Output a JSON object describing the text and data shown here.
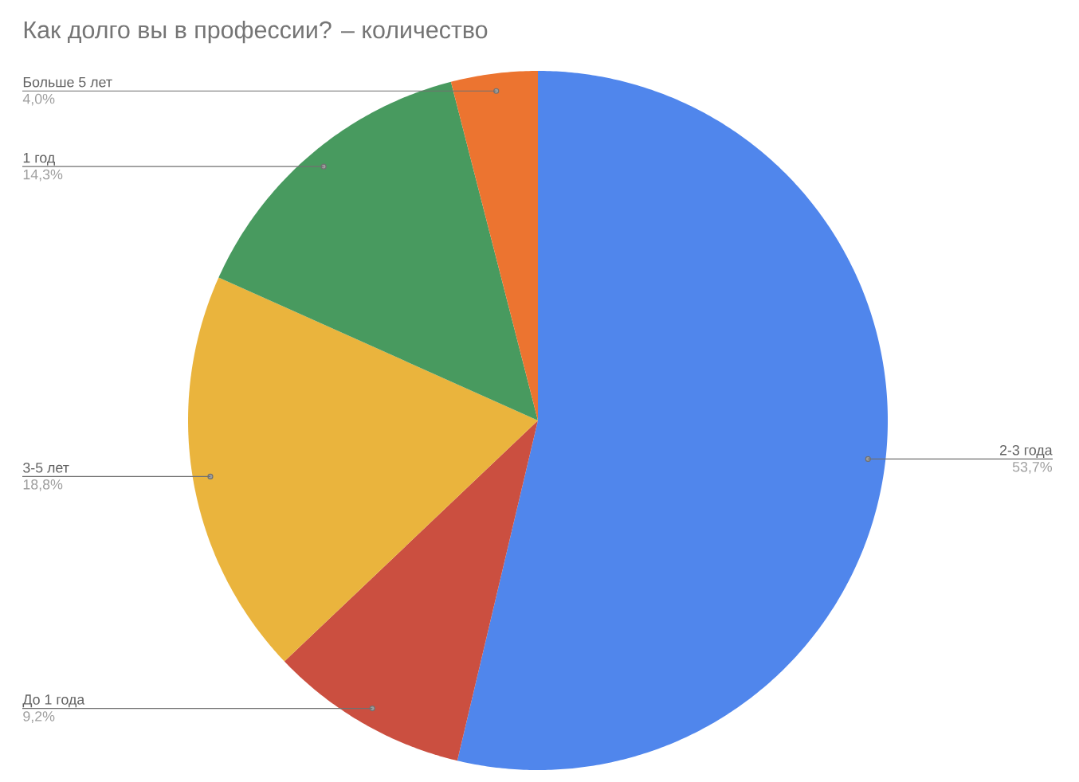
{
  "chart_data": {
    "type": "pie",
    "title": "Как долго вы в профессии? – количество",
    "categories": [
      "2-3 года",
      "До 1 года",
      "3-5 лет",
      "1 год",
      "Больше 5 лет"
    ],
    "values": [
      53.7,
      9.2,
      18.8,
      14.3,
      4.0
    ],
    "colors": [
      "#5086ec",
      "#cb4f40",
      "#eab43d",
      "#489a5f",
      "#ec7430"
    ],
    "value_labels": [
      "53,7%",
      "9,2%",
      "18,8%",
      "14,3%",
      "4,0%"
    ]
  }
}
